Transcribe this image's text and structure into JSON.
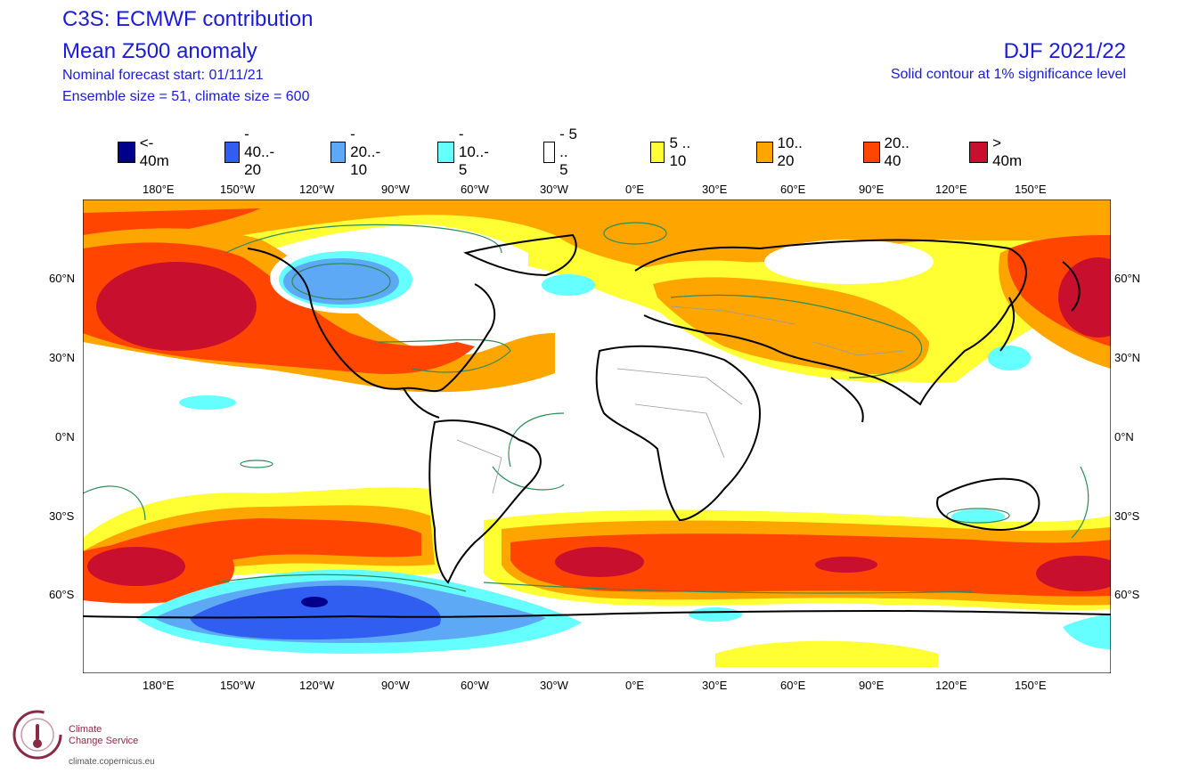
{
  "header": {
    "title": "C3S: ECMWF contribution",
    "subtitle": "Mean Z500 anomaly",
    "forecast_start": "Nominal forecast start: 01/11/21",
    "ensemble": "Ensemble size = 51, climate size = 600",
    "period": "DJF 2021/22",
    "significance": "Solid contour at 1% significance level"
  },
  "legend": [
    {
      "label": "<- 40m",
      "color": "#00008b"
    },
    {
      "label": "- 40..- 20",
      "color": "#2f5ef0"
    },
    {
      "label": "- 20..- 10",
      "color": "#5ea9f5"
    },
    {
      "label": "- 10..- 5",
      "color": "#66ffff"
    },
    {
      "label": "- 5 .. 5",
      "color": "#ffffff"
    },
    {
      "label": "5 .. 10",
      "color": "#ffff33"
    },
    {
      "label": "10.. 20",
      "color": "#ffa500"
    },
    {
      "label": "20.. 40",
      "color": "#ff4500"
    },
    {
      "label": ">  40m",
      "color": "#c8102e"
    }
  ],
  "axes": {
    "lon_labels": [
      "180°E",
      "150°W",
      "120°W",
      "90°W",
      "60°W",
      "30°W",
      "0°E",
      "30°E",
      "60°E",
      "90°E",
      "120°E",
      "150°E"
    ],
    "lat_labels": [
      "60°N",
      "30°N",
      "0°N",
      "30°S",
      "60°S"
    ]
  },
  "logo": {
    "line1": "Climate",
    "line2": "Change Service",
    "url": "climate.copernicus.eu"
  }
}
